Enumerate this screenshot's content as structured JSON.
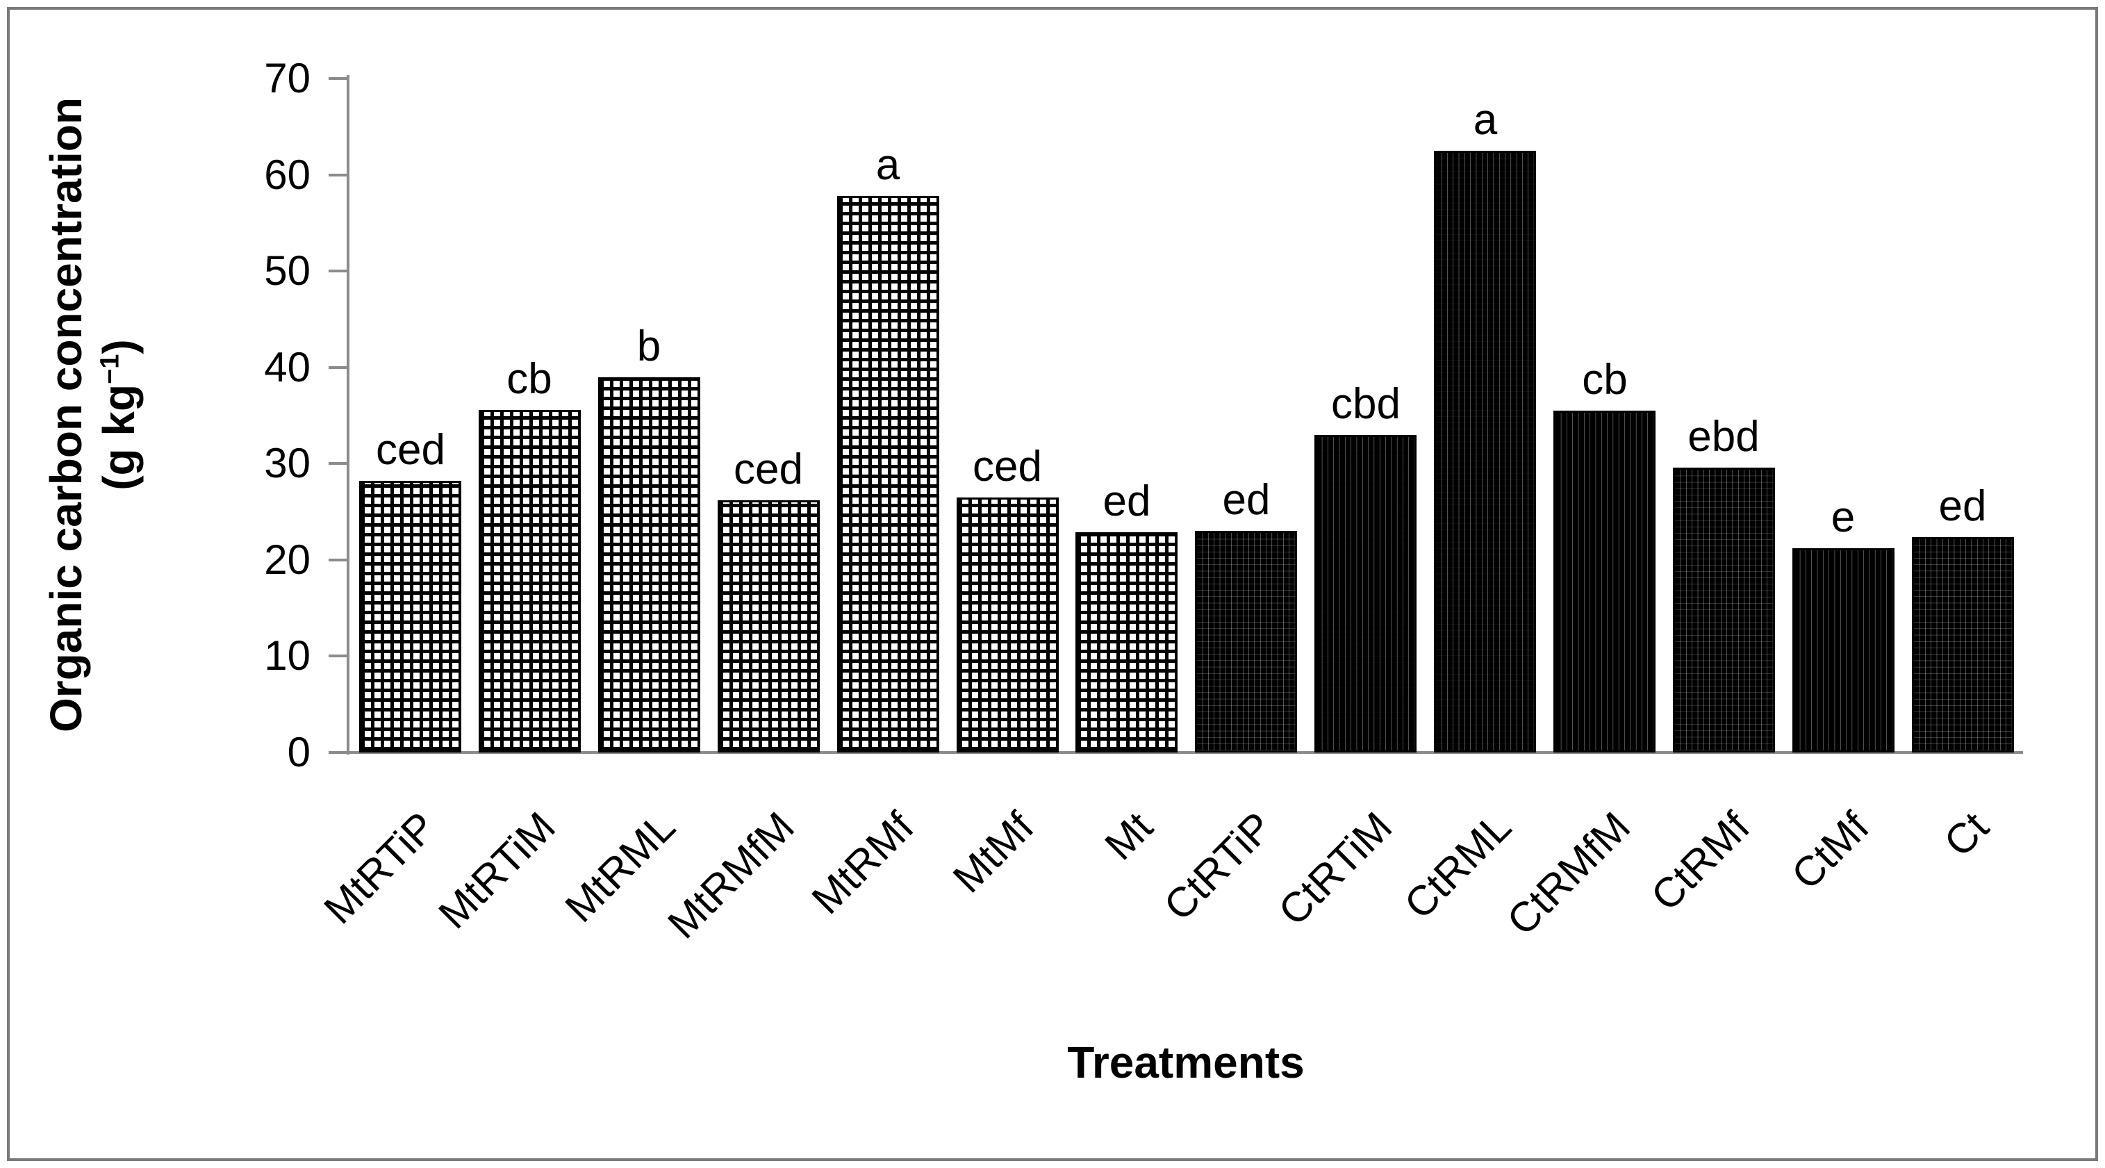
{
  "figure": {
    "background_color": "#ffffff",
    "frame_color": "#7a7a7a",
    "axis_color": "#8c8c8c",
    "bar_border_color": "#000000",
    "y_axis": {
      "title": "Organic carbon concentration",
      "unit_prefix": "(g kg",
      "unit_sup": "−1",
      "unit_suffix": ")"
    },
    "x_axis": {
      "title": "Treatments"
    }
  },
  "chart_data": {
    "type": "bar",
    "title": "",
    "xlabel": "Treatments",
    "ylabel": "Organic carbon concentration (g kg⁻¹)",
    "ylim": [
      0,
      70
    ],
    "ytick_interval": 10,
    "ytick_labels": [
      "0",
      "10",
      "20",
      "30",
      "40",
      "50",
      "60",
      "70"
    ],
    "grid": false,
    "legend": "none",
    "categories": [
      "MtRTiP",
      "MtRTiM",
      "MtRML",
      "MtRMfM",
      "MtRMf",
      "MtMf",
      "Mt",
      "CtRTiP",
      "CtRTiM",
      "CtRML",
      "CtRMfM",
      "CtRMf",
      "CtMf",
      "Ct"
    ],
    "values": [
      28.2,
      35.6,
      39.0,
      26.2,
      57.8,
      26.5,
      22.9,
      23.0,
      33.0,
      62.5,
      35.5,
      29.6,
      21.2,
      22.4
    ],
    "sig_letters": [
      "ced",
      "cb",
      "b",
      "ced",
      "a",
      "ced",
      "ed",
      "ed",
      "cbd",
      "a",
      "cb",
      "ebd",
      "e",
      "ed"
    ],
    "bar_patterns": [
      "dark",
      "dark",
      "dark",
      "dark",
      "dark",
      "dark",
      "dark",
      "light",
      "light",
      "light",
      "light",
      "light",
      "light",
      "light"
    ]
  }
}
